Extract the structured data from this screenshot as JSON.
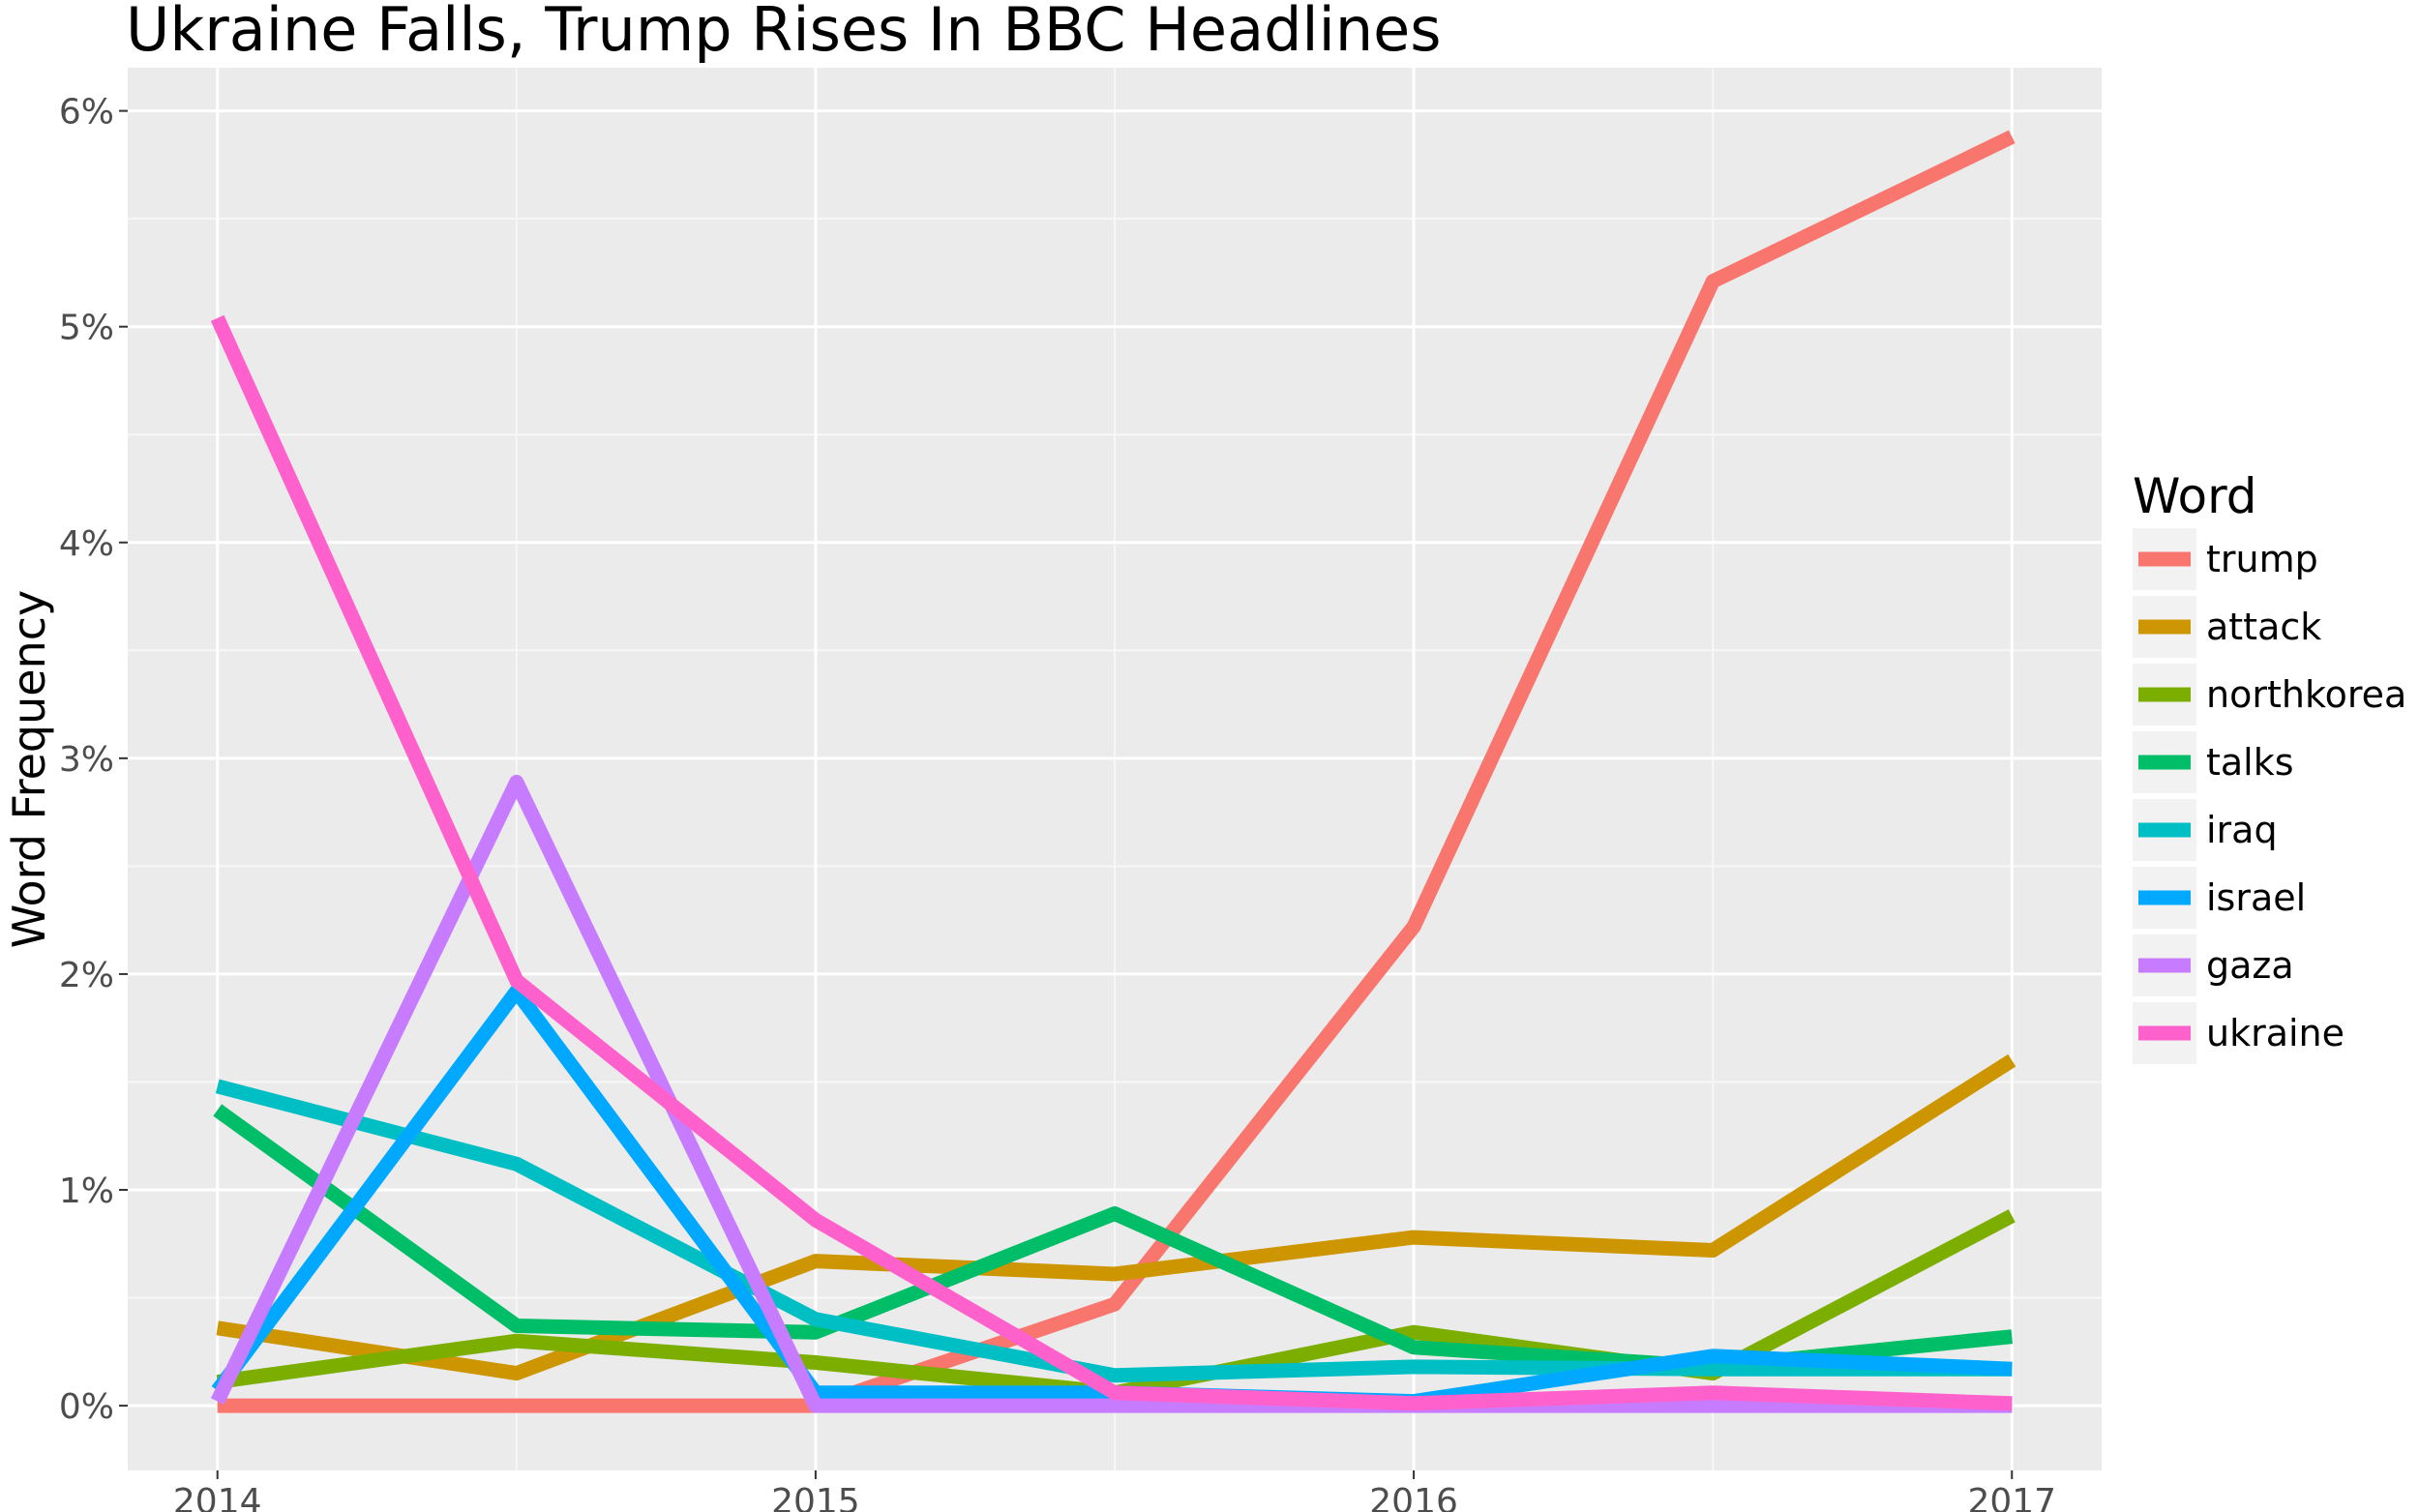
{
  "chart_data": {
    "type": "line",
    "title": "Ukraine Falls, Trump Rises In BBC Headlines",
    "xlabel": "",
    "ylabel": "Word Frequency",
    "x": [
      2014.0,
      2014.5,
      2015.0,
      2015.5,
      2016.0,
      2016.5,
      2017.0
    ],
    "xticks": [
      2014,
      2015,
      2016,
      2017
    ],
    "xtick_labels": [
      "2014",
      "2015",
      "2016",
      "2017"
    ],
    "xlim": [
      2013.85,
      2017.15
    ],
    "yticks": [
      0,
      1,
      2,
      3,
      4,
      5,
      6
    ],
    "ytick_labels": [
      "0%",
      "1%",
      "2%",
      "3%",
      "4%",
      "5%",
      "6%"
    ],
    "ylim": [
      -0.3,
      6.2
    ],
    "grid": true,
    "legend_title": "Word",
    "legend_position": "right",
    "series": [
      {
        "name": "trump",
        "color": "#F8766D",
        "values": [
          0.0,
          0.0,
          0.0,
          0.47,
          2.22,
          5.21,
          5.88
        ]
      },
      {
        "name": "attack",
        "color": "#CD9600",
        "values": [
          0.36,
          0.15,
          0.67,
          0.61,
          0.78,
          0.72,
          1.6
        ]
      },
      {
        "name": "northkorea",
        "color": "#7CAE00",
        "values": [
          0.11,
          0.3,
          0.2,
          0.06,
          0.34,
          0.15,
          0.88
        ]
      },
      {
        "name": "talks",
        "color": "#00BE67",
        "values": [
          1.37,
          0.37,
          0.34,
          0.89,
          0.27,
          0.18,
          0.32
        ]
      },
      {
        "name": "iraq",
        "color": "#00BFC4",
        "values": [
          1.48,
          1.12,
          0.4,
          0.14,
          0.18,
          0.17,
          0.17
        ]
      },
      {
        "name": "israel",
        "color": "#00A9FF",
        "values": [
          0.07,
          1.92,
          0.06,
          0.06,
          0.02,
          0.23,
          0.17
        ]
      },
      {
        "name": "gaza",
        "color": "#C77CFF",
        "values": [
          0.02,
          2.89,
          0.0,
          0.0,
          0.0,
          0.0,
          0.0
        ]
      },
      {
        "name": "ukraine",
        "color": "#FF61CC",
        "values": [
          5.04,
          1.97,
          0.86,
          0.06,
          0.01,
          0.06,
          0.01
        ]
      }
    ]
  }
}
